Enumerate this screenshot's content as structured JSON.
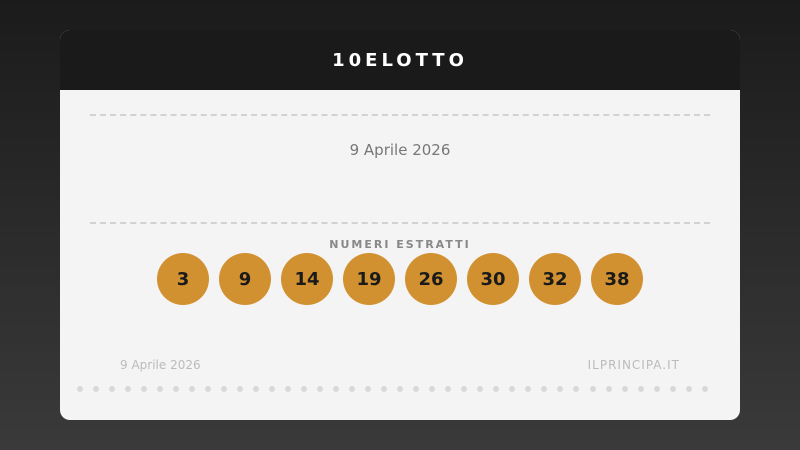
{
  "header": {
    "title": "10ELOTTO"
  },
  "draw_date": "9 Aprile 2026",
  "numbers_label": "NUMERI ESTRATTI",
  "numbers": [
    "3",
    "9",
    "14",
    "19",
    "26",
    "30",
    "32",
    "38"
  ],
  "footer": {
    "date": "9 Aprile 2026",
    "site": "ILPRINCIPA.IT"
  },
  "colors": {
    "ball": "#d29130",
    "header": "#1a1a1a",
    "card": "#f4f4f4"
  }
}
